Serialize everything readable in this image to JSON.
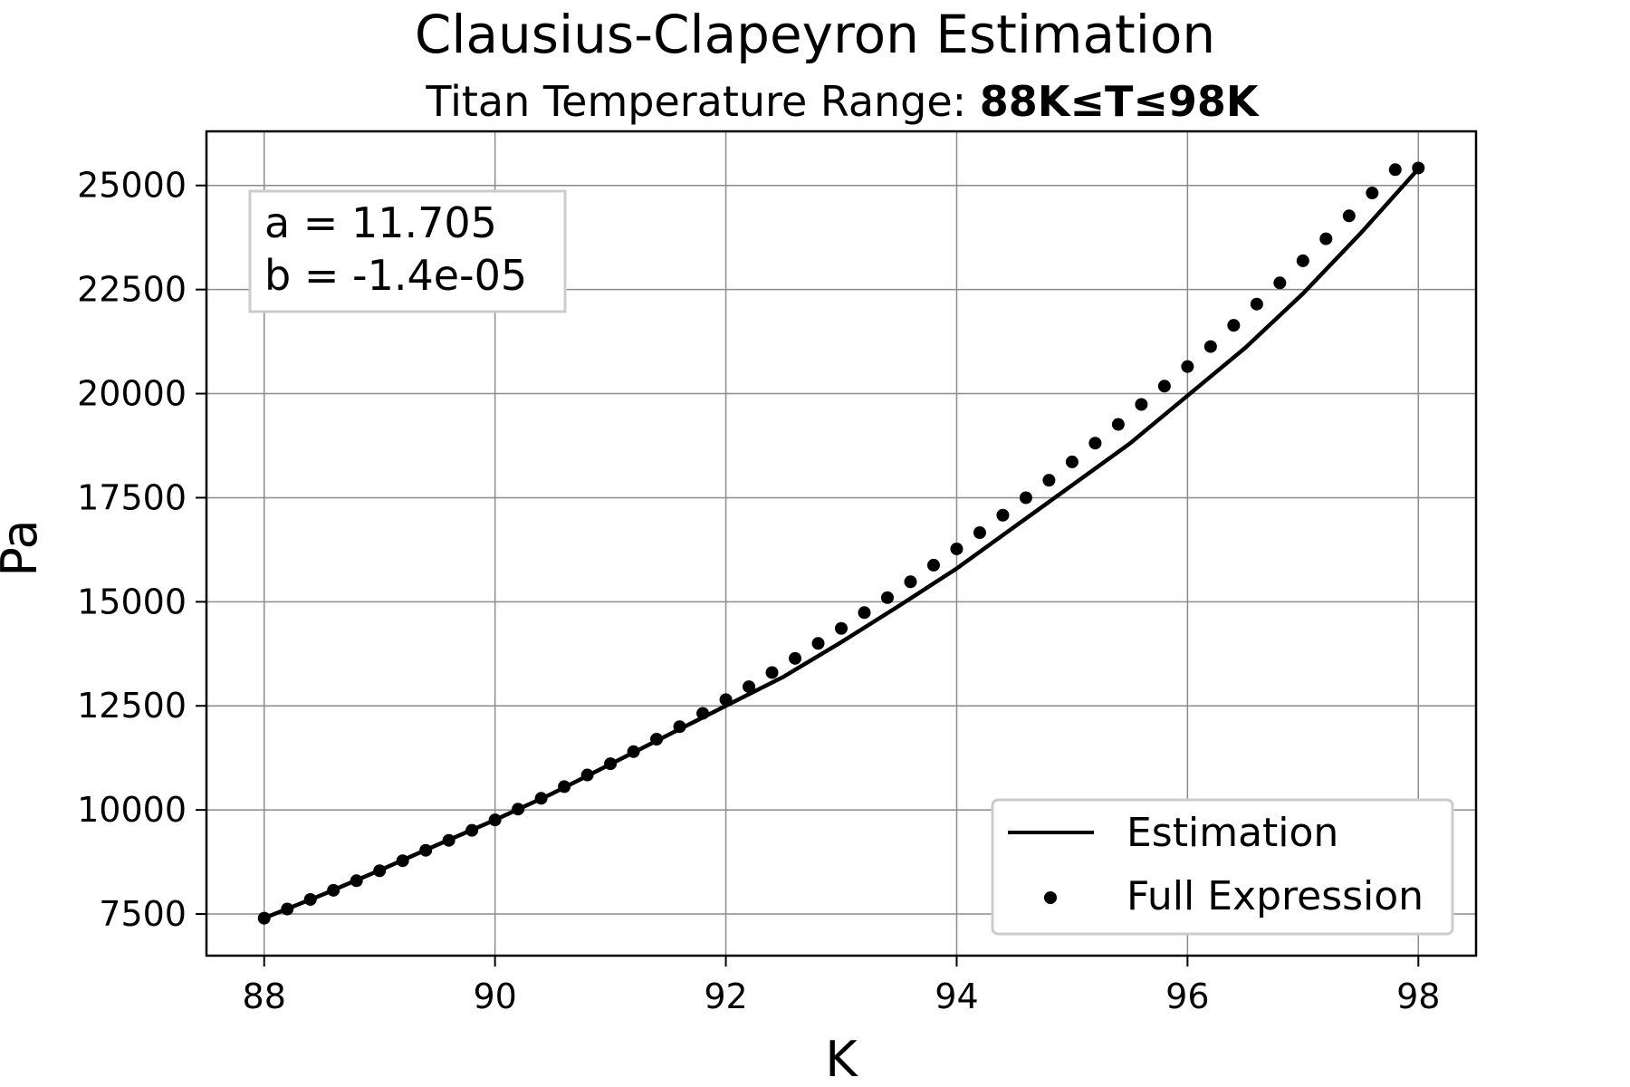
{
  "chart_data": {
    "type": "line",
    "title": "Clausius-Clapeyron Estimation",
    "subtitle_prefix": "Titan Temperature Range: ",
    "subtitle_bold": "88K≤T≤98K",
    "xlabel": "K",
    "ylabel": "Pa",
    "xlim": [
      87.5,
      98.5
    ],
    "ylim": [
      6500,
      26300
    ],
    "grid": true,
    "x_ticks": [
      88,
      90,
      92,
      94,
      96,
      98
    ],
    "y_ticks": [
      7500,
      10000,
      12500,
      15000,
      17500,
      20000,
      22500,
      25000
    ],
    "annotation": [
      "a = 11.705",
      "b = -1.4e-05"
    ],
    "legend_position": "lower-right",
    "series": [
      {
        "name": "Estimation",
        "kind": "line",
        "color": "#000000",
        "x": [
          88.0,
          88.5,
          89.0,
          89.5,
          90.0,
          90.5,
          91.0,
          91.5,
          92.0,
          92.5,
          93.0,
          93.5,
          94.0,
          94.5,
          95.0,
          95.5,
          96.0,
          96.5,
          97.0,
          97.5,
          98.0
        ],
        "y": [
          7400,
          7960,
          8550,
          9160,
          9760,
          10400,
          11100,
          11800,
          12500,
          13200,
          14030,
          14900,
          15800,
          16800,
          17800,
          18800,
          19950,
          21100,
          22400,
          23850,
          25400
        ]
      },
      {
        "name": "Full Expression",
        "kind": "scatter",
        "color": "#000000",
        "x": [
          88.0,
          88.2,
          88.4,
          88.6,
          88.8,
          89.0,
          89.2,
          89.4,
          89.6,
          89.8,
          90.0,
          90.2,
          90.4,
          90.6,
          90.8,
          91.0,
          91.2,
          91.4,
          91.6,
          91.8,
          92.0,
          92.2,
          92.4,
          92.6,
          92.8,
          93.0,
          93.2,
          93.4,
          93.6,
          93.8,
          94.0,
          94.2,
          94.4,
          94.6,
          94.8,
          95.0,
          95.2,
          95.4,
          95.6,
          95.8,
          96.0,
          96.2,
          96.4,
          96.6,
          96.8,
          97.0,
          97.2,
          97.4,
          97.6,
          97.8,
          98.0
        ],
        "y": [
          7400,
          7620,
          7850,
          8070,
          8300,
          8540,
          8780,
          9030,
          9270,
          9510,
          9760,
          10020,
          10280,
          10560,
          10840,
          11110,
          11400,
          11700,
          12000,
          12320,
          12650,
          12960,
          13300,
          13640,
          14000,
          14360,
          14740,
          15100,
          15480,
          15880,
          16270,
          16660,
          17080,
          17500,
          17920,
          18360,
          18810,
          19260,
          19740,
          20180,
          20650,
          21130,
          21640,
          22150,
          22660,
          23190,
          23720,
          24270,
          24820,
          25380,
          25420
        ]
      }
    ]
  }
}
